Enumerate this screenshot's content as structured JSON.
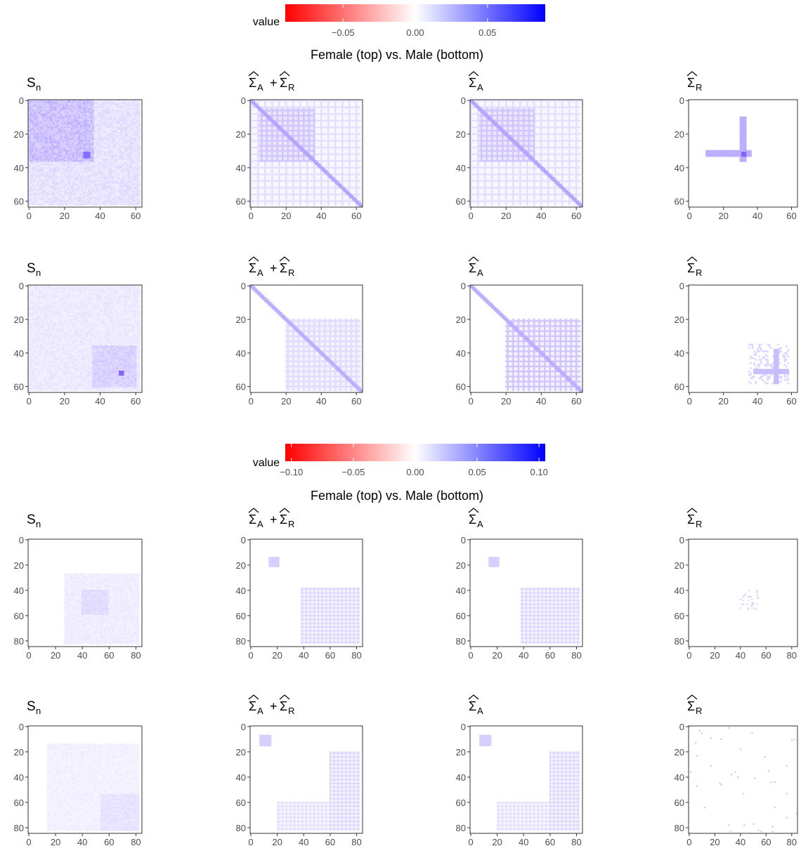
{
  "chart_data": [
    {
      "type": "heatmap",
      "colorbar": {
        "label": "value",
        "ticks": [
          "−0.05",
          "0.00",
          "0.05"
        ],
        "tick_values": [
          -0.05,
          0.0,
          0.05
        ],
        "limits": [
          -0.09,
          0.09
        ],
        "colors": {
          "low": "#ff0000",
          "mid": "#ffffff",
          "high": "#0000ff"
        }
      },
      "title": "Female (top) vs. Male (bottom)",
      "matrix_size": 64,
      "axis_ticks": [
        "0",
        "20",
        "40",
        "60"
      ],
      "rows": [
        {
          "group": "Female",
          "panels": [
            {
              "label": "S",
              "sub": "n",
              "pattern": "Sn_female"
            },
            {
              "label": "Σ",
              "sub": "A",
              "label2": "Σ",
              "sub2": "R",
              "plus": "+",
              "pattern": "AR_female"
            },
            {
              "label": "Σ",
              "sub": "A",
              "pattern": "A_female"
            },
            {
              "label": "Σ",
              "sub": "R",
              "pattern": "R_female"
            }
          ]
        },
        {
          "group": "Male",
          "panels": [
            {
              "label": "S",
              "sub": "n",
              "pattern": "Sn_male"
            },
            {
              "label": "Σ",
              "sub": "A",
              "label2": "Σ",
              "sub2": "R",
              "plus": "+",
              "pattern": "AR_male"
            },
            {
              "label": "Σ",
              "sub": "A",
              "pattern": "A_male"
            },
            {
              "label": "Σ",
              "sub": "R",
              "pattern": "R_male"
            }
          ]
        }
      ]
    },
    {
      "type": "heatmap",
      "colorbar": {
        "label": "value",
        "ticks": [
          "−0.10",
          "−0.05",
          "0.00",
          "0.05",
          "0.10"
        ],
        "tick_values": [
          -0.1,
          -0.05,
          0.0,
          0.05,
          0.1
        ],
        "limits": [
          -0.105,
          0.105
        ],
        "colors": {
          "low": "#ff0000",
          "mid": "#ffffff",
          "high": "#0000ff"
        }
      },
      "title": "Female (top) vs. Male (bottom)",
      "matrix_size": 85,
      "axis_ticks": [
        "0",
        "20",
        "40",
        "60",
        "80"
      ],
      "rows": [
        {
          "group": "Female",
          "panels": [
            {
              "label": "S",
              "sub": "n",
              "pattern": "Sn_female2"
            },
            {
              "label": "Σ",
              "sub": "A",
              "label2": "Σ",
              "sub2": "R",
              "plus": "+",
              "pattern": "AR_female2"
            },
            {
              "label": "Σ",
              "sub": "A",
              "pattern": "A_female2"
            },
            {
              "label": "Σ",
              "sub": "R",
              "pattern": "R_female2"
            }
          ]
        },
        {
          "group": "Male",
          "panels": [
            {
              "label": "S",
              "sub": "n",
              "pattern": "Sn_male2"
            },
            {
              "label": "Σ",
              "sub": "A",
              "label2": "Σ",
              "sub2": "R",
              "plus": "+",
              "pattern": "AR_male2"
            },
            {
              "label": "Σ",
              "sub": "A",
              "pattern": "A_male2"
            },
            {
              "label": "Σ",
              "sub": "R",
              "pattern": "R_male2"
            }
          ]
        }
      ]
    }
  ]
}
